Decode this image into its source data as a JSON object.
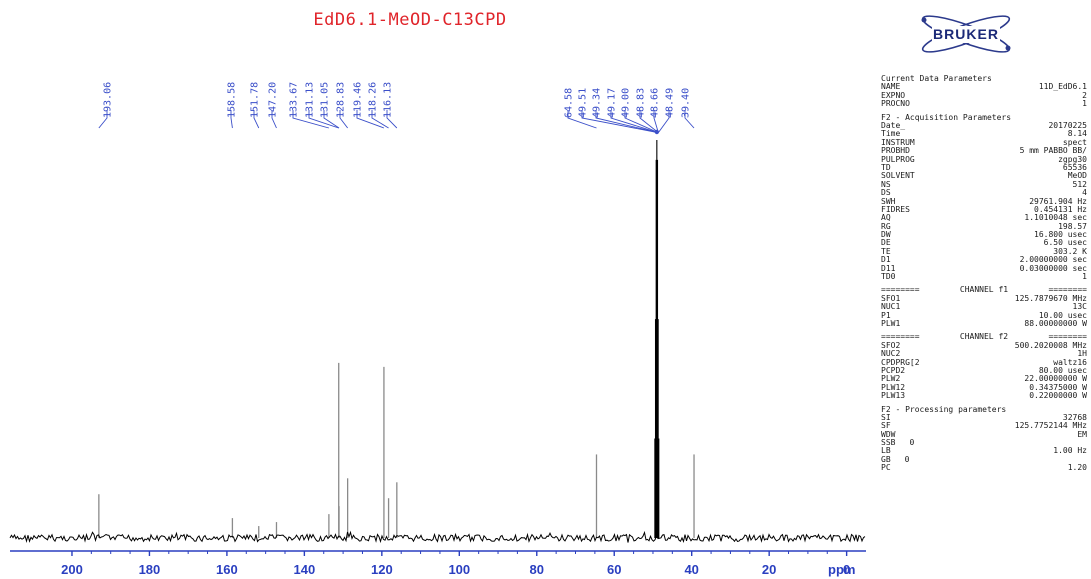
{
  "title": "EdD6.1-MeOD-C13CPD",
  "logo_text": "BRUKER",
  "colors": {
    "title": "#e0242a",
    "peak_labels": "#3b4fc9",
    "axis": "#2a3fc0",
    "spectrum": "#000000",
    "peaks": "#8a8a8a"
  },
  "params": {
    "current": {
      "heading": "Current Data Parameters",
      "rows": [
        {
          "k": "NAME",
          "v": "11D_EdD6.1"
        },
        {
          "k": "EXPNO",
          "v": "2"
        },
        {
          "k": "PROCNO",
          "v": "1"
        }
      ]
    },
    "acquisition": {
      "heading": "F2 - Acquisition Parameters",
      "rows": [
        {
          "k": "Date_",
          "v": "20170225"
        },
        {
          "k": "Time",
          "v": "8.14"
        },
        {
          "k": "INSTRUM",
          "v": "spect"
        },
        {
          "k": "PROBHD",
          "v": "5 mm PABBO BB/"
        },
        {
          "k": "PULPROG",
          "v": "zgpg30"
        },
        {
          "k": "TD",
          "v": "65536"
        },
        {
          "k": "SOLVENT",
          "v": "MeOD"
        },
        {
          "k": "NS",
          "v": "512"
        },
        {
          "k": "DS",
          "v": "4"
        },
        {
          "k": "SWH",
          "v": "29761.904 Hz"
        },
        {
          "k": "FIDRES",
          "v": "0.454131 Hz"
        },
        {
          "k": "AQ",
          "v": "1.1010048 sec"
        },
        {
          "k": "RG",
          "v": "198.57"
        },
        {
          "k": "DW",
          "v": "16.800 usec"
        },
        {
          "k": "DE",
          "v": "6.50 usec"
        },
        {
          "k": "TE",
          "v": "303.2 K"
        },
        {
          "k": "D1",
          "v": "2.00000000 sec"
        },
        {
          "k": "D11",
          "v": "0.03000000 sec"
        },
        {
          "k": "TD0",
          "v": "1"
        }
      ]
    },
    "channel_f1": {
      "heading_left": "========",
      "heading_mid": "CHANNEL f1",
      "heading_right": "========",
      "rows": [
        {
          "k": "SFO1",
          "v": "125.7879670 MHz"
        },
        {
          "k": "NUC1",
          "v": "13C"
        },
        {
          "k": "P1",
          "v": "10.00 usec"
        },
        {
          "k": "PLW1",
          "v": "88.00000000 W"
        }
      ]
    },
    "channel_f2": {
      "heading_left": "========",
      "heading_mid": "CHANNEL f2",
      "heading_right": "========",
      "rows": [
        {
          "k": "SFO2",
          "v": "500.2020008 MHz"
        },
        {
          "k": "NUC2",
          "v": "1H"
        },
        {
          "k": "CPDPRG[2",
          "v": "waltz16"
        },
        {
          "k": "PCPD2",
          "v": "80.00 usec"
        },
        {
          "k": "PLW2",
          "v": "22.00000000 W"
        },
        {
          "k": "PLW12",
          "v": "0.34375000 W"
        },
        {
          "k": "PLW13",
          "v": "0.22000000 W"
        }
      ]
    },
    "processing": {
      "heading": "F2 - Processing parameters",
      "rows": [
        {
          "k": "SI",
          "v": "32768"
        },
        {
          "k": "SF",
          "v": "125.7752144 MHz"
        },
        {
          "k": "WDW",
          "v": "EM"
        },
        {
          "k": "SSB",
          "m": "0",
          "v": ""
        },
        {
          "k": "LB",
          "v": "1.00 Hz"
        },
        {
          "k": "GB",
          "m": "0",
          "v": ""
        },
        {
          "k": "PC",
          "v": "1.20"
        }
      ]
    }
  },
  "chart_data": {
    "type": "line",
    "title": "EdD6.1-MeOD-C13CPD",
    "xlabel": "ppm",
    "ylabel": "",
    "xlim": [
      216,
      -5
    ],
    "x_reversed": true,
    "grid": false,
    "x_ticks": [
      200,
      180,
      160,
      140,
      120,
      100,
      80,
      60,
      40,
      20,
      0
    ],
    "peaks": [
      {
        "ppm": 193.06,
        "label": "193.06",
        "height": 0.11
      },
      {
        "ppm": 158.58,
        "label": "158.58",
        "height": 0.05
      },
      {
        "ppm": 151.78,
        "label": "151.78",
        "height": 0.03
      },
      {
        "ppm": 147.2,
        "label": "147.20",
        "height": 0.04
      },
      {
        "ppm": 133.67,
        "label": "133.67",
        "height": 0.06
      },
      {
        "ppm": 131.13,
        "label": "131.13",
        "height": 0.44
      },
      {
        "ppm": 131.05,
        "label": "131.05",
        "height": 0.08
      },
      {
        "ppm": 128.83,
        "label": "128.83",
        "height": 0.15
      },
      {
        "ppm": 119.46,
        "label": "119.46",
        "height": 0.43
      },
      {
        "ppm": 118.26,
        "label": "118.26",
        "height": 0.1
      },
      {
        "ppm": 116.13,
        "label": "116.13",
        "height": 0.14
      },
      {
        "ppm": 64.58,
        "label": "64.58",
        "height": 0.21
      },
      {
        "ppm": 49.51,
        "label": "49.51",
        "height": 0.25
      },
      {
        "ppm": 49.34,
        "label": "49.34",
        "height": 0.55
      },
      {
        "ppm": 49.17,
        "label": "49.17",
        "height": 0.95
      },
      {
        "ppm": 49.0,
        "label": "49.00",
        "height": 1.0
      },
      {
        "ppm": 48.83,
        "label": "48.83",
        "height": 0.95
      },
      {
        "ppm": 48.66,
        "label": "48.66",
        "height": 0.55
      },
      {
        "ppm": 48.49,
        "label": "48.49",
        "height": 0.25
      },
      {
        "ppm": 39.4,
        "label": "39.40",
        "height": 0.21
      }
    ]
  }
}
